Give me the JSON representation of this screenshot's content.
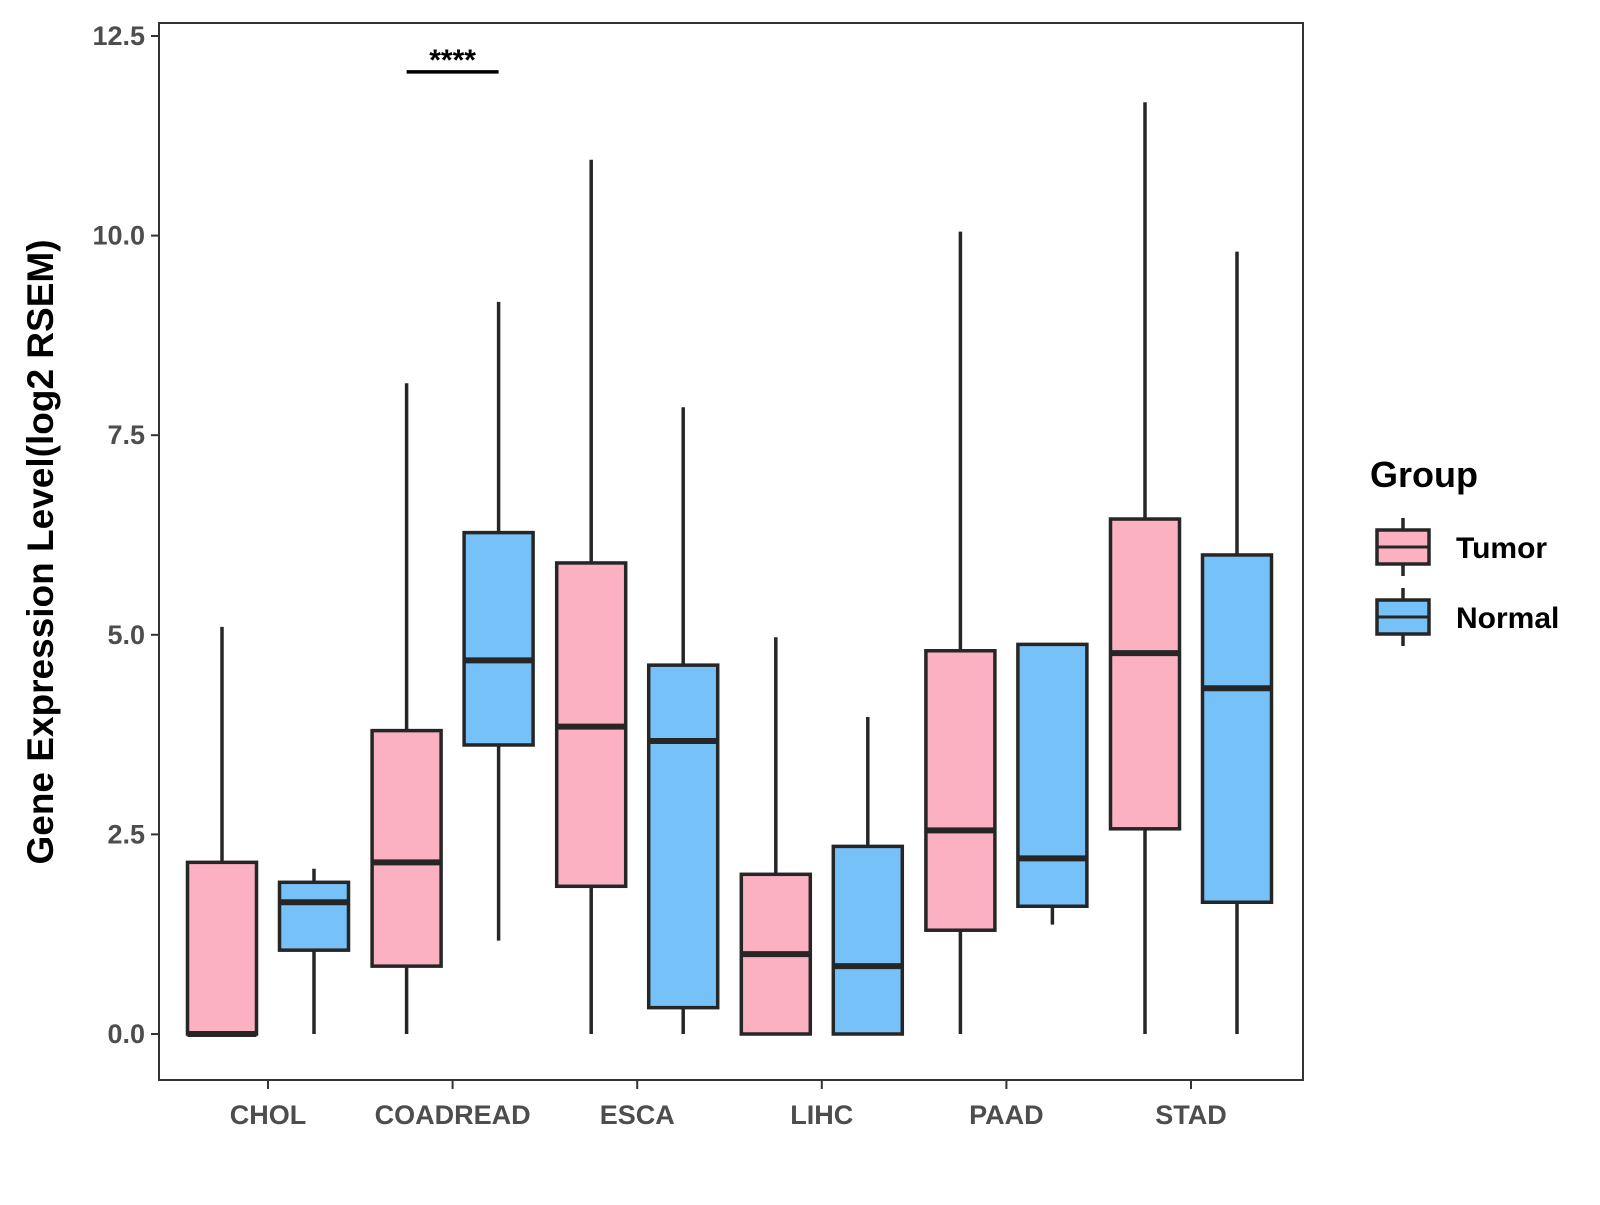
{
  "chart_data": {
    "type": "boxplot",
    "title": "",
    "xlabel": "",
    "ylabel": "Gene Expression Level(log2 RSEM)",
    "ylim": [
      -0.6,
      12.7
    ],
    "yticks": [
      0.0,
      2.5,
      5.0,
      7.5,
      10.0,
      12.5
    ],
    "ytick_labels": [
      "0.0",
      "2.5",
      "5.0",
      "7.5",
      "10.0",
      "12.5"
    ],
    "grid": false,
    "categories": [
      "CHOL",
      "COADREAD",
      "ESCA",
      "LIHC",
      "PAAD",
      "STAD"
    ],
    "legend": {
      "title": "Group",
      "placement": "right",
      "entries": [
        "Tumor",
        "Normal"
      ]
    },
    "series": [
      {
        "name": "Tumor",
        "color": "#fbb1c2",
        "boxes": [
          {
            "min": 0.0,
            "q1": 0.0,
            "median": 0.0,
            "q3": 2.15,
            "max": 5.1
          },
          {
            "min": 0.0,
            "q1": 0.85,
            "median": 2.15,
            "q3": 3.8,
            "max": 8.15
          },
          {
            "min": 0.0,
            "q1": 1.85,
            "median": 3.85,
            "q3": 5.9,
            "max": 10.95
          },
          {
            "min": 0.0,
            "q1": 0.0,
            "median": 1.0,
            "q3": 2.0,
            "max": 4.97
          },
          {
            "min": 0.0,
            "q1": 1.3,
            "median": 2.55,
            "q3": 4.8,
            "max": 10.05
          },
          {
            "min": 0.0,
            "q1": 2.57,
            "median": 4.77,
            "q3": 6.45,
            "max": 11.67
          }
        ]
      },
      {
        "name": "Normal",
        "color": "#76c1f8",
        "boxes": [
          {
            "min": 0.0,
            "q1": 1.05,
            "median": 1.65,
            "q3": 1.9,
            "max": 2.07
          },
          {
            "min": 1.17,
            "q1": 3.62,
            "median": 4.68,
            "q3": 6.28,
            "max": 9.17
          },
          {
            "min": 0.0,
            "q1": 0.33,
            "median": 3.67,
            "q3": 4.62,
            "max": 7.85
          },
          {
            "min": 0.0,
            "q1": 0.0,
            "median": 0.85,
            "q3": 2.35,
            "max": 3.97
          },
          {
            "min": 1.37,
            "q1": 1.6,
            "median": 2.2,
            "q3": 4.88,
            "max": 4.88
          },
          {
            "min": 0.0,
            "q1": 1.65,
            "median": 4.33,
            "q3": 6.0,
            "max": 9.8
          }
        ]
      }
    ],
    "annotations": [
      {
        "text": "****",
        "category": "COADREAD",
        "y": 12.05
      }
    ]
  }
}
